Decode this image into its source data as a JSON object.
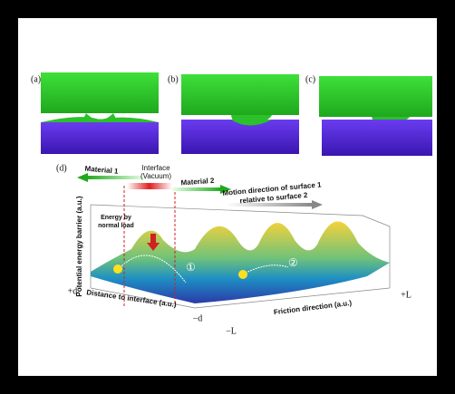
{
  "panels": {
    "a": "(a)",
    "b": "(b)",
    "c": "(c)",
    "d": "(d)"
  },
  "labels": {
    "material1": "Material 1",
    "interface": "Interface",
    "vacuum": "(Vacuum)",
    "material2": "Material 2",
    "motion1": "Motion direction of surface 1",
    "motion2": "relative to surface 2",
    "yaxis": "Potential energy barrier (a.u.)",
    "energy1": "Energy by",
    "energy2": "normal load",
    "distance": "Distance to interface (a.u.)",
    "friction": "Friction direction (a.u.)",
    "plus_d": "+d",
    "minus_d": "−d",
    "minus_L": "−L",
    "plus_L": "+L",
    "step1": "①",
    "step2": "②"
  }
}
